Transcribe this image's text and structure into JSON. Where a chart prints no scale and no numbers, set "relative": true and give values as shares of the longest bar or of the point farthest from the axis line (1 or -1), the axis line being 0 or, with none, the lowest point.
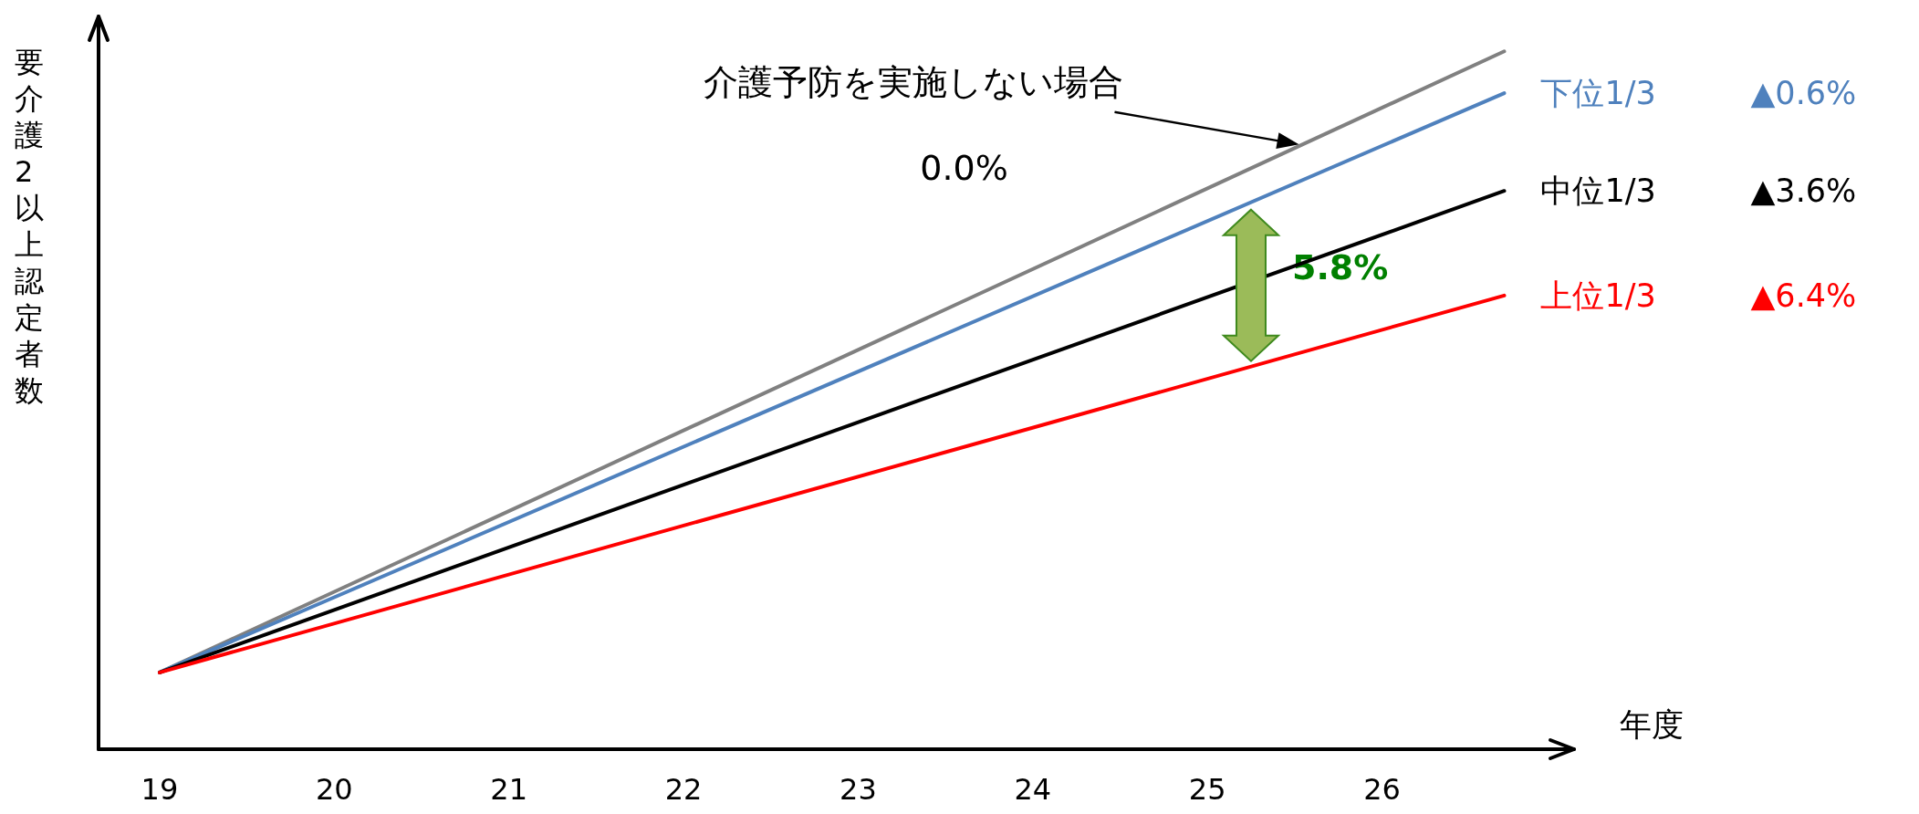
{
  "chart_data": {
    "type": "line",
    "relative": true,
    "xlabel": "年度",
    "ylabel": "要介護2以上認定者数",
    "x": [
      19,
      26.7
    ],
    "xlim": [
      18.65,
      27.1
    ],
    "xticks": [
      19,
      20,
      21,
      22,
      23,
      24,
      25,
      26
    ],
    "tick_labels": "x",
    "marker": "none",
    "line_style": "solid",
    "series": [
      {
        "color": "#808080",
        "values": [
          0.11,
          1
        ]
      },
      {
        "name": "下位1/3",
        "color": "#4f81bd",
        "values": [
          0.11,
          0.94
        ]
      },
      {
        "name": "中位1/3",
        "color": "#000000",
        "values": [
          0.11,
          0.8
        ]
      },
      {
        "name": "上位1/3",
        "color": "#ff0000",
        "values": [
          0.11,
          0.65
        ]
      }
    ],
    "annotations": [
      "介護予防を実施しない場合",
      "0.0%",
      "5.8%",
      "▲0.6%",
      "▲3.6%",
      "▲6.4%"
    ]
  }
}
